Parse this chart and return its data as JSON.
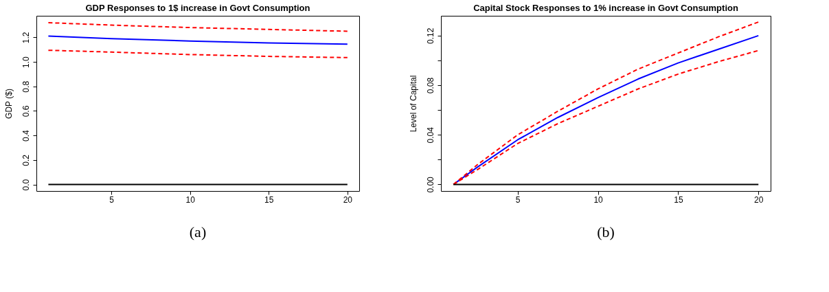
{
  "chart_data": [
    {
      "type": "line",
      "title": "GDP Responses to 1$ increase in Govt Consumption",
      "ylabel": "GDP ($)",
      "xlim": [
        0.24,
        20.75
      ],
      "xticks": [
        5,
        10,
        15,
        20
      ],
      "ylim": [
        -0.053,
        1.376
      ],
      "yticks": [
        {
          "value": 0,
          "label": "0.0"
        },
        0.2,
        0.4,
        0.6,
        0.8,
        {
          "value": 1,
          "label": "1.0"
        },
        1.2
      ],
      "grid": false,
      "annotations": [
        "(a)"
      ],
      "series": [
        {
          "color": "#0000ff",
          "line_style": "solid",
          "x": [
            1,
            5,
            10,
            15,
            20
          ],
          "values": [
            1.21,
            1.19,
            1.17,
            1.155,
            1.145
          ]
        },
        {
          "color": "#ff0000",
          "line_style": "dashed",
          "x": [
            1,
            5,
            10,
            15,
            20
          ],
          "values": [
            1.32,
            1.3,
            1.28,
            1.265,
            1.25
          ]
        },
        {
          "color": "#ff0000",
          "line_style": "dashed",
          "x": [
            1,
            5,
            10,
            15,
            20
          ],
          "values": [
            1.095,
            1.08,
            1.06,
            1.045,
            1.035
          ]
        },
        {
          "color": "#000000",
          "line_style": "solid",
          "x": [
            1,
            20
          ],
          "values": [
            0,
            0
          ]
        }
      ]
    },
    {
      "type": "line",
      "title": "Capital Stock Responses to 1% increase in Govt Consumption",
      "ylabel": "Level of Capital",
      "xlim": [
        0.22,
        20.76
      ],
      "xticks": [
        5,
        10,
        15,
        20
      ],
      "ylim": [
        -0.0053,
        0.136
      ],
      "yticks": [
        {
          "value": 0.0,
          "label": "0.00"
        },
        {
          "value": 0.02,
          "label": null
        },
        {
          "value": 0.04,
          "label": "0.04"
        },
        {
          "value": 0.06,
          "label": null
        },
        {
          "value": 0.08,
          "label": "0.08"
        },
        {
          "value": 0.1,
          "label": null
        },
        {
          "value": 0.12,
          "label": "0.12"
        }
      ],
      "grid": false,
      "annotations": [
        "(b)"
      ],
      "series": [
        {
          "color": "#0000ff",
          "line_style": "solid",
          "x": [
            1,
            2.5,
            5,
            7.5,
            10,
            12.5,
            15,
            17.5,
            20
          ],
          "values": [
            0,
            0.014,
            0.036,
            0.054,
            0.07,
            0.085,
            0.098,
            0.109,
            0.12
          ]
        },
        {
          "color": "#ff0000",
          "line_style": "dashed",
          "x": [
            1,
            2.5,
            5,
            7.5,
            10,
            12.5,
            15,
            17.5,
            20
          ],
          "values": [
            0,
            0.016,
            0.04,
            0.059,
            0.077,
            0.093,
            0.106,
            0.119,
            0.131
          ]
        },
        {
          "color": "#ff0000",
          "line_style": "dashed",
          "x": [
            1,
            2.5,
            5,
            7.5,
            10,
            12.5,
            15,
            17.5,
            20
          ],
          "values": [
            0,
            0.012,
            0.033,
            0.049,
            0.063,
            0.077,
            0.089,
            0.099,
            0.108
          ]
        },
        {
          "color": "#000000",
          "line_style": "solid",
          "x": [
            1,
            20
          ],
          "values": [
            0,
            0
          ]
        }
      ]
    }
  ]
}
